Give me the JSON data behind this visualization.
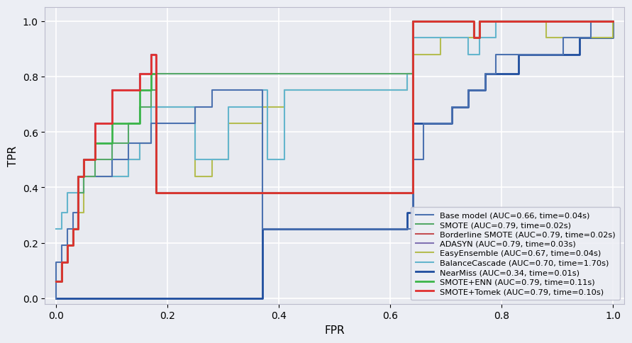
{
  "xlabel": "FPR",
  "ylabel": "TPR",
  "curves": [
    {
      "label": "Base model (AUC=0.66, time=0.04s)",
      "color": "#4c72b0",
      "linewidth": 1.5,
      "zorder": 4,
      "fpr": [
        0.0,
        0.0,
        0.01,
        0.02,
        0.03,
        0.04,
        0.05,
        0.07,
        0.1,
        0.13,
        0.17,
        0.25,
        0.28,
        0.37,
        0.63,
        0.64,
        0.66,
        0.71,
        0.74,
        0.77,
        0.79,
        0.83,
        0.88,
        0.91,
        0.96,
        1.0
      ],
      "tpr": [
        0.0,
        0.13,
        0.19,
        0.25,
        0.31,
        0.38,
        0.44,
        0.44,
        0.5,
        0.56,
        0.63,
        0.69,
        0.75,
        0.25,
        0.25,
        0.5,
        0.63,
        0.69,
        0.75,
        0.81,
        0.88,
        0.88,
        0.88,
        0.94,
        1.0,
        1.0
      ]
    },
    {
      "label": "SMOTE (AUC=0.79, time=0.02s)",
      "color": "#55a868",
      "linewidth": 1.5,
      "zorder": 5,
      "fpr": [
        0.0,
        0.01,
        0.01,
        0.02,
        0.02,
        0.03,
        0.04,
        0.04,
        0.05,
        0.07,
        0.1,
        0.13,
        0.15,
        0.17,
        0.18,
        0.63,
        0.64,
        0.72,
        0.75,
        0.76,
        0.79,
        0.83,
        1.0
      ],
      "tpr": [
        0.06,
        0.06,
        0.13,
        0.13,
        0.19,
        0.25,
        0.31,
        0.38,
        0.44,
        0.5,
        0.56,
        0.63,
        0.69,
        0.75,
        0.81,
        0.81,
        1.0,
        1.0,
        0.94,
        1.0,
        1.0,
        1.0,
        1.0
      ]
    },
    {
      "label": "Borderline SMOTE (AUC=0.79, time=0.02s)",
      "color": "#c44e52",
      "linewidth": 1.5,
      "zorder": 6,
      "fpr": [
        0.0,
        0.01,
        0.01,
        0.02,
        0.02,
        0.03,
        0.04,
        0.04,
        0.05,
        0.07,
        0.1,
        0.15,
        0.17,
        0.18,
        0.63,
        0.64,
        0.72,
        0.75,
        0.76,
        0.79,
        0.83,
        1.0
      ],
      "tpr": [
        0.06,
        0.06,
        0.13,
        0.13,
        0.19,
        0.25,
        0.31,
        0.44,
        0.5,
        0.63,
        0.75,
        0.81,
        0.88,
        0.38,
        0.38,
        1.0,
        1.0,
        0.94,
        1.0,
        1.0,
        1.0,
        1.0
      ]
    },
    {
      "label": "ADASYN (AUC=0.79, time=0.03s)",
      "color": "#8172b2",
      "linewidth": 1.5,
      "zorder": 7,
      "fpr": [
        0.0,
        0.01,
        0.01,
        0.02,
        0.02,
        0.03,
        0.04,
        0.04,
        0.05,
        0.07,
        0.1,
        0.15,
        0.17,
        0.18,
        0.63,
        0.64,
        0.72,
        0.75,
        0.76,
        0.79,
        0.83,
        1.0
      ],
      "tpr": [
        0.06,
        0.06,
        0.13,
        0.13,
        0.19,
        0.25,
        0.31,
        0.44,
        0.5,
        0.63,
        0.75,
        0.81,
        0.88,
        0.38,
        0.38,
        1.0,
        1.0,
        0.94,
        1.0,
        1.0,
        1.0,
        1.0
      ]
    },
    {
      "label": "EasyEnsemble (AUC=0.67, time=0.04s)",
      "color": "#b5bd52",
      "linewidth": 1.5,
      "zorder": 3,
      "fpr": [
        0.0,
        0.01,
        0.02,
        0.03,
        0.04,
        0.05,
        0.1,
        0.13,
        0.15,
        0.17,
        0.18,
        0.25,
        0.28,
        0.31,
        0.37,
        0.41,
        0.57,
        0.63,
        0.64,
        0.68,
        0.69,
        0.74,
        0.76,
        0.79,
        0.88,
        1.0
      ],
      "tpr": [
        0.06,
        0.13,
        0.19,
        0.25,
        0.31,
        0.44,
        0.44,
        0.5,
        0.56,
        0.63,
        0.69,
        0.44,
        0.5,
        0.63,
        0.69,
        0.75,
        0.75,
        0.81,
        0.88,
        0.88,
        0.94,
        0.94,
        1.0,
        1.0,
        0.94,
        1.0
      ]
    },
    {
      "label": "BalanceCascade (AUC=0.70, time=1.70s)",
      "color": "#64b5cd",
      "linewidth": 1.5,
      "zorder": 3,
      "fpr": [
        0.0,
        0.01,
        0.02,
        0.04,
        0.05,
        0.07,
        0.1,
        0.13,
        0.15,
        0.17,
        0.25,
        0.31,
        0.37,
        0.38,
        0.41,
        0.57,
        0.63,
        0.64,
        0.68,
        0.71,
        0.74,
        0.76,
        0.79,
        0.83,
        1.0
      ],
      "tpr": [
        0.25,
        0.31,
        0.38,
        0.44,
        0.5,
        0.56,
        0.44,
        0.5,
        0.56,
        0.69,
        0.5,
        0.69,
        0.75,
        0.5,
        0.75,
        0.75,
        0.81,
        0.94,
        0.94,
        0.94,
        0.88,
        0.94,
        1.0,
        1.0,
        1.0
      ]
    },
    {
      "label": "NearMiss (AUC=0.34, time=0.01s)",
      "color": "#1e4d9e",
      "linewidth": 2.0,
      "zorder": 2,
      "fpr": [
        0.0,
        0.0,
        0.01,
        0.37,
        0.37,
        0.63,
        0.63,
        0.64,
        0.71,
        0.74,
        0.77,
        0.83,
        0.88,
        0.94,
        1.0
      ],
      "tpr": [
        0.0,
        0.0,
        0.0,
        0.0,
        0.25,
        0.25,
        0.31,
        0.63,
        0.69,
        0.75,
        0.81,
        0.88,
        0.88,
        0.94,
        1.0
      ]
    },
    {
      "label": "SMOTE+ENN (AUC=0.79, time=0.11s)",
      "color": "#3cb54a",
      "linewidth": 2.0,
      "zorder": 8,
      "fpr": [
        0.0,
        0.01,
        0.01,
        0.02,
        0.02,
        0.03,
        0.04,
        0.04,
        0.05,
        0.07,
        0.1,
        0.15,
        0.17,
        0.18,
        0.63,
        0.64,
        0.72,
        0.75,
        0.76,
        0.79,
        0.83,
        1.0
      ],
      "tpr": [
        0.06,
        0.06,
        0.13,
        0.13,
        0.19,
        0.25,
        0.31,
        0.44,
        0.5,
        0.56,
        0.63,
        0.75,
        0.81,
        0.38,
        0.38,
        1.0,
        1.0,
        0.94,
        1.0,
        1.0,
        1.0,
        1.0
      ]
    },
    {
      "label": "SMOTE+Tomek (AUC=0.79, time=0.10s)",
      "color": "#e03030",
      "linewidth": 2.0,
      "zorder": 9,
      "fpr": [
        0.0,
        0.01,
        0.01,
        0.02,
        0.02,
        0.03,
        0.04,
        0.04,
        0.05,
        0.07,
        0.1,
        0.15,
        0.17,
        0.18,
        0.63,
        0.64,
        0.72,
        0.75,
        0.76,
        0.79,
        0.83,
        1.0
      ],
      "tpr": [
        0.06,
        0.06,
        0.13,
        0.13,
        0.19,
        0.25,
        0.31,
        0.44,
        0.5,
        0.63,
        0.75,
        0.81,
        0.88,
        0.38,
        0.38,
        1.0,
        1.0,
        0.94,
        1.0,
        1.0,
        1.0,
        1.0
      ]
    }
  ]
}
